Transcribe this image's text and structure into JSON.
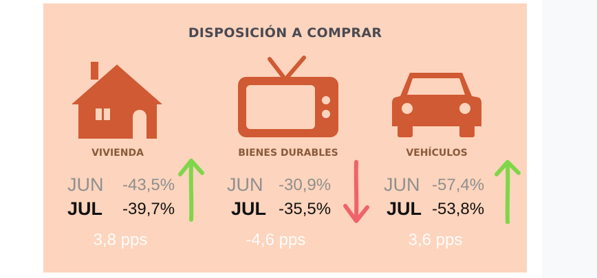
{
  "title": "DISPOSICIÓN A COMPRAR",
  "colors": {
    "background": "#fdd4bd",
    "icon": "#cf5a33",
    "label": "#8a5a3c",
    "up_arrow": "#7fd64a",
    "down_arrow": "#f0636b"
  },
  "categories": [
    {
      "icon": "house-icon",
      "label": "VIVIENDA",
      "jun_label": "JUN",
      "jun_value": "-43,5%",
      "jul_label": "JUL",
      "jul_value": "-39,7%",
      "change": "3,8 pps",
      "direction": "up"
    },
    {
      "icon": "tv-icon",
      "label": "BIENES DURABLES",
      "jun_label": "JUN",
      "jun_value": "-30,9%",
      "jul_label": "JUL",
      "jul_value": "-35,5%",
      "change": "-4,6 pps",
      "direction": "down"
    },
    {
      "icon": "car-icon",
      "label": "VEHÍCULOS",
      "jun_label": "JUN",
      "jun_value": "-57,4%",
      "jul_label": "JUL",
      "jul_value": "-53,8%",
      "change": "3,6 pps",
      "direction": "up"
    }
  ]
}
